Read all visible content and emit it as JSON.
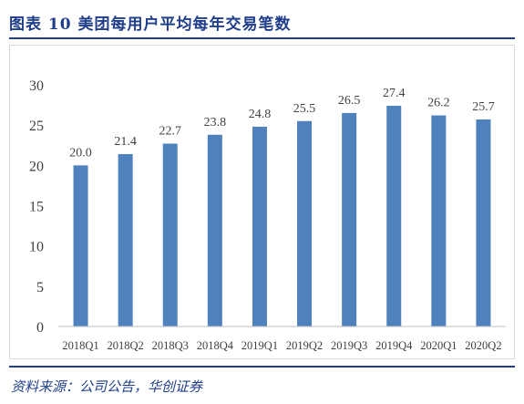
{
  "figure_title": "图表 10  美团每用户平均每年交易笔数",
  "source": "资料来源：公司公告，华创证券",
  "colors": {
    "bar": "#4f81bd",
    "title": "#1f3e8a",
    "axis": "#bfbfbf",
    "text": "#404040"
  },
  "chart_data": {
    "type": "bar",
    "title": "",
    "xlabel": "",
    "ylabel": "",
    "categories": [
      "2018Q1",
      "2018Q2",
      "2018Q3",
      "2018Q4",
      "2019Q1",
      "2019Q2",
      "2019Q3",
      "2019Q4",
      "2020Q1",
      "2020Q2"
    ],
    "values": [
      20.0,
      21.4,
      22.7,
      23.8,
      24.8,
      25.5,
      26.5,
      27.4,
      26.2,
      25.7
    ],
    "value_labels": [
      "20.0",
      "21.4",
      "22.7",
      "23.8",
      "24.8",
      "25.5",
      "26.5",
      "27.4",
      "26.2",
      "25.7"
    ],
    "ylim": [
      0,
      30
    ],
    "yticks": [
      0,
      5,
      10,
      15,
      20,
      25,
      30
    ],
    "grid": false,
    "legend": "none"
  }
}
